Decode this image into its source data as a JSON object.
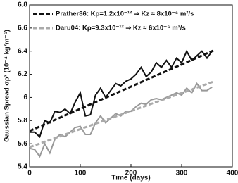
{
  "chart_data": {
    "type": "line",
    "xlabel": "Time (days)",
    "ylabel": "Gaussian Spread σρ² (10⁻⁴ kg²m⁻⁶)",
    "xlim": [
      0,
      400
    ],
    "xticks": [
      0,
      100,
      200,
      300,
      400
    ],
    "ylim": [
      5.4,
      6.8
    ],
    "yticks": [
      5.4,
      5.6,
      5.8,
      6,
      6.2,
      6.4,
      6.6,
      6.8
    ],
    "legend": "upper left",
    "series": [
      {
        "color": "#111111",
        "dash": false,
        "x": [
          0,
          10,
          20,
          30,
          40,
          50,
          60,
          70,
          80,
          90,
          100,
          110,
          120,
          130,
          140,
          150,
          160,
          170,
          180,
          190,
          200,
          210,
          220,
          230,
          240,
          250,
          260,
          270,
          280,
          290,
          300,
          310,
          320,
          330,
          340,
          350,
          360
        ],
        "values": [
          5.7,
          5.7,
          5.66,
          5.8,
          5.78,
          5.88,
          5.87,
          5.9,
          5.86,
          5.96,
          6.04,
          5.84,
          5.85,
          6.02,
          6.08,
          6.0,
          6.06,
          6.12,
          6.1,
          6.14,
          6.16,
          6.2,
          6.26,
          6.18,
          6.22,
          6.3,
          6.26,
          6.32,
          6.26,
          6.34,
          6.3,
          6.4,
          6.32,
          6.36,
          6.4,
          6.34,
          6.4
        ]
      },
      {
        "name": "Prather86: Kρ=1.2x10⁻¹² ⇒ Kz ≈ 8x10⁻⁶ m²/s",
        "color": "#111111",
        "dash": true,
        "x": [
          0,
          365
        ],
        "values": [
          5.71,
          6.41
        ]
      },
      {
        "color": "#999999",
        "dash": false,
        "x": [
          0,
          10,
          20,
          30,
          40,
          50,
          60,
          70,
          80,
          90,
          100,
          110,
          120,
          130,
          140,
          150,
          160,
          170,
          180,
          190,
          200,
          210,
          220,
          230,
          240,
          250,
          260,
          270,
          280,
          290,
          300,
          310,
          320,
          330,
          340,
          350,
          360
        ],
        "values": [
          5.56,
          5.55,
          5.49,
          5.6,
          5.52,
          5.64,
          5.68,
          5.66,
          5.7,
          5.74,
          5.75,
          5.68,
          5.68,
          5.78,
          5.84,
          5.78,
          5.82,
          5.86,
          5.84,
          5.88,
          5.88,
          5.92,
          5.95,
          5.94,
          5.98,
          5.99,
          5.98,
          6.0,
          6.02,
          6.04,
          6.02,
          6.08,
          6.04,
          6.12,
          6.06,
          6.06,
          6.09
        ]
      },
      {
        "name": "Daru04: Kρ=9.3x10⁻¹² ⇒ Kz ≈ 6x10⁻⁶ m²/s",
        "color": "#aaaaaa",
        "dash": true,
        "x": [
          0,
          365
        ],
        "values": [
          5.57,
          6.14
        ]
      }
    ]
  }
}
